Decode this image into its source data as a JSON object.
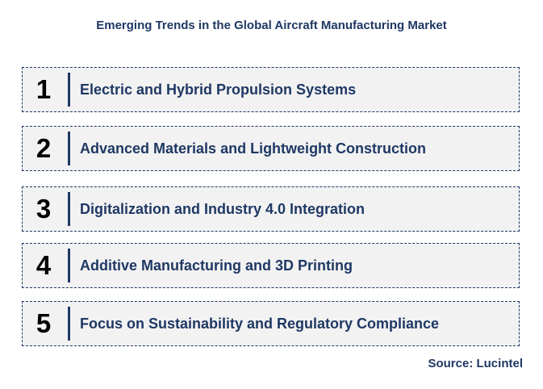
{
  "title": "Emerging Trends in the Global Aircraft Manufacturing Market",
  "trends": [
    {
      "number": "1",
      "label": "Electric and Hybrid Propulsion Systems"
    },
    {
      "number": "2",
      "label": "Advanced Materials and Lightweight Construction"
    },
    {
      "number": "3",
      "label": "Digitalization and Industry 4.0 Integration"
    },
    {
      "number": "4",
      "label": "Additive Manufacturing and 3D Printing"
    },
    {
      "number": "5",
      "label": "Focus on Sustainability and Regulatory Compliance"
    }
  ],
  "source": "Source: Lucintel",
  "colors": {
    "accent": "#1f3864",
    "box_fill": "#f2f2f2",
    "number": "#000000"
  }
}
